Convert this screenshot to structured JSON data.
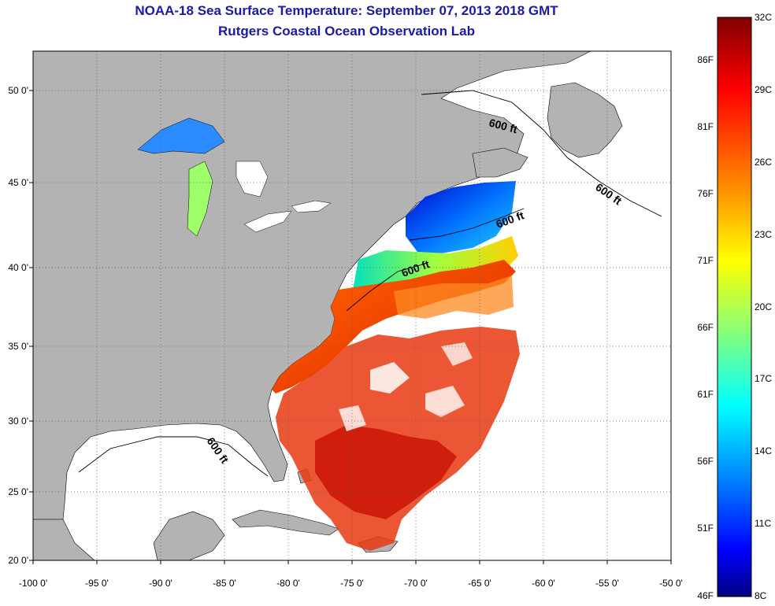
{
  "header": {
    "title": "NOAA-18 Sea Surface Temperature:  September 07, 2013 2018 GMT",
    "subtitle": "Rutgers Coastal Ocean Observation Lab"
  },
  "map": {
    "lon_ticks": [
      "-100 0'",
      "-95 0'",
      "-90 0'",
      "-85 0'",
      "-80 0'",
      "-75 0'",
      "-70 0'",
      "-65 0'",
      "-60 0'",
      "-55 0'",
      "-50 0'"
    ],
    "lat_ticks": [
      "50 0'",
      "45 0'",
      "40 0'",
      "35 0'",
      "30 0'",
      "25 0'",
      "20 0'"
    ],
    "isobath_label": "600 ft",
    "colors": {
      "land": "#b3b3b3",
      "no_data": "#ffffff",
      "grid": "#555555"
    }
  },
  "colorbar": {
    "celsius_labels": [
      "32C",
      "29C",
      "26C",
      "23C",
      "20C",
      "17C",
      "14C",
      "11C",
      "8C"
    ],
    "fahrenheit_labels": [
      "86F",
      "81F",
      "76F",
      "71F",
      "66F",
      "61F",
      "56F",
      "51F",
      "46F"
    ],
    "stops": [
      "#800000",
      "#ff0000",
      "#ff8000",
      "#ffff00",
      "#80ff80",
      "#00ffff",
      "#0080ff",
      "#0000ff",
      "#000080"
    ]
  }
}
